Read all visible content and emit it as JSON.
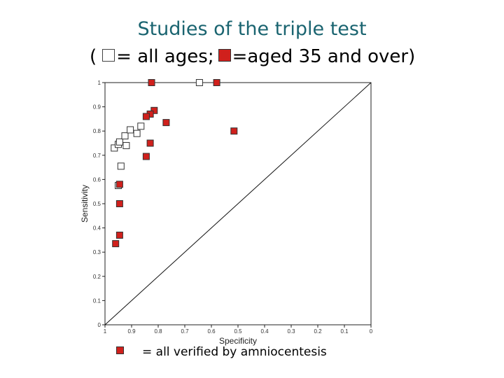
{
  "title": {
    "line1": "Studies of the triple test",
    "open_paren": "(",
    "all_ages": "= all ages;",
    "aged_35": "=aged 35 and over)"
  },
  "footnote": {
    "text": "= all verified by amniocentesis",
    "marker_color": "#d0201c"
  },
  "chart_data": {
    "type": "scatter",
    "xlabel": "Specificity",
    "ylabel": "Sensitivity",
    "x_reversed": true,
    "xlim": [
      0,
      1
    ],
    "ylim": [
      0,
      1
    ],
    "x_ticks": [
      1,
      0.9,
      0.8,
      0.7,
      0.6,
      0.5,
      0.4,
      0.3,
      0.2,
      0.1,
      0
    ],
    "x_tick_labels": [
      "1",
      "0.9",
      "0.8",
      "0.7",
      "0.6",
      "0.5",
      "0.4",
      "0.3",
      "0.2",
      "0.1",
      "0"
    ],
    "y_ticks": [
      0,
      0.1,
      0.2,
      0.3,
      0.4,
      0.5,
      0.6,
      0.7,
      0.8,
      0.9,
      1
    ],
    "y_tick_labels": [
      "0",
      "0.1",
      "0.2",
      "0.3",
      "0.4",
      "0.5",
      "0.6",
      "0.7",
      "0.8",
      "0.9",
      "1"
    ],
    "reference_line": {
      "from": [
        1,
        0
      ],
      "to": [
        0,
        1
      ]
    },
    "series": [
      {
        "key": "all_ages",
        "color": "#ffffff",
        "points": [
          {
            "x": 0.645,
            "y": 1.0
          },
          {
            "x": 0.965,
            "y": 0.73
          },
          {
            "x": 0.95,
            "y": 0.745
          },
          {
            "x": 0.945,
            "y": 0.755
          },
          {
            "x": 0.925,
            "y": 0.78
          },
          {
            "x": 0.92,
            "y": 0.74
          },
          {
            "x": 0.905,
            "y": 0.805
          },
          {
            "x": 0.88,
            "y": 0.79
          },
          {
            "x": 0.865,
            "y": 0.82
          },
          {
            "x": 0.94,
            "y": 0.655
          },
          {
            "x": 0.95,
            "y": 0.575
          }
        ]
      },
      {
        "key": "aged_35",
        "color": "#d0201c",
        "points": [
          {
            "x": 0.825,
            "y": 1.0
          },
          {
            "x": 0.58,
            "y": 1.0
          },
          {
            "x": 0.815,
            "y": 0.885
          },
          {
            "x": 0.83,
            "y": 0.87
          },
          {
            "x": 0.845,
            "y": 0.86
          },
          {
            "x": 0.77,
            "y": 0.835
          },
          {
            "x": 0.515,
            "y": 0.8
          },
          {
            "x": 0.83,
            "y": 0.75
          },
          {
            "x": 0.845,
            "y": 0.695
          },
          {
            "x": 0.945,
            "y": 0.58
          },
          {
            "x": 0.945,
            "y": 0.5
          },
          {
            "x": 0.945,
            "y": 0.37
          },
          {
            "x": 0.96,
            "y": 0.335
          }
        ]
      }
    ]
  }
}
